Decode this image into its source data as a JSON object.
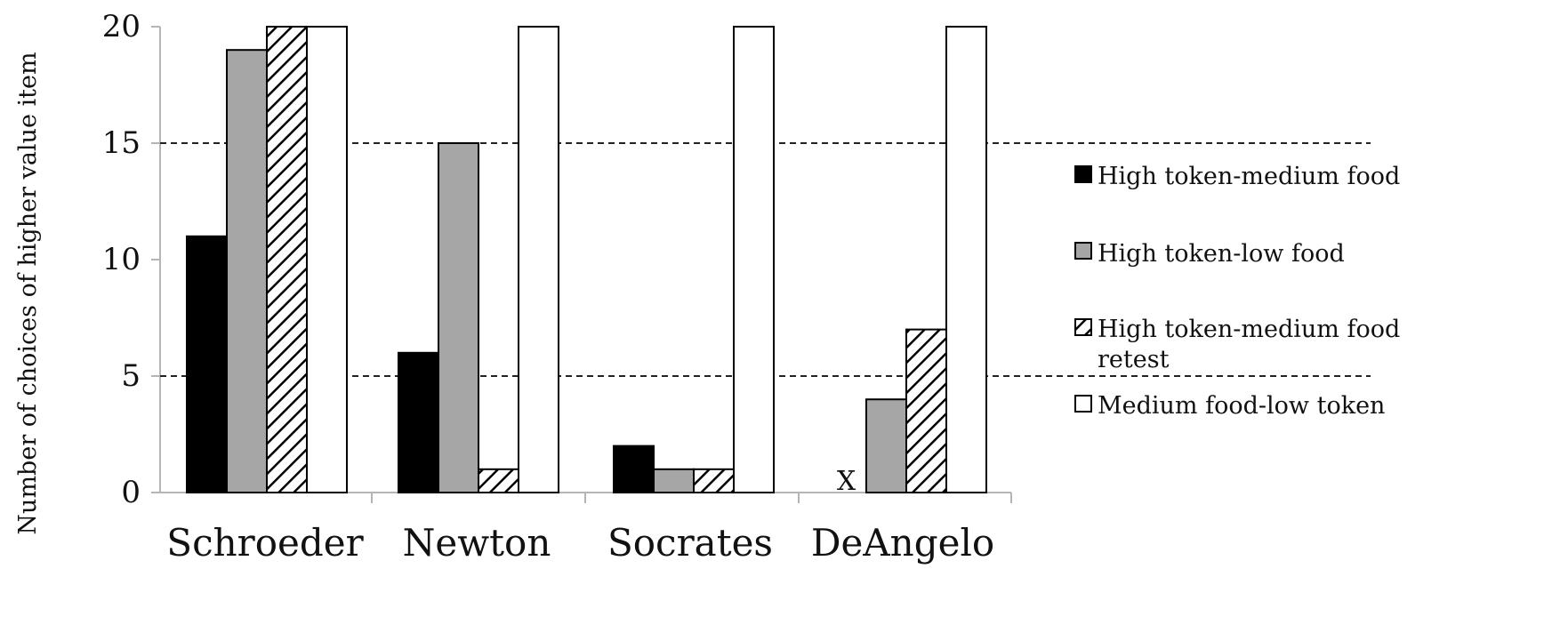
{
  "chart_data": {
    "type": "bar",
    "categories": [
      "Schroeder",
      "Newton",
      "Socrates",
      "DeAngelo"
    ],
    "series": [
      {
        "name": "High token-medium food",
        "values": [
          11,
          6,
          2,
          null
        ],
        "color": "#000000",
        "pattern": "solid"
      },
      {
        "name": "High token-low food",
        "values": [
          19,
          15,
          1,
          4
        ],
        "color": "#a6a6a6",
        "pattern": "solid"
      },
      {
        "name": "High token-medium food retest",
        "values": [
          20,
          1,
          1,
          7
        ],
        "color": "#ffffff",
        "pattern": "diagonal-hatch"
      },
      {
        "name": "Medium food-low token",
        "values": [
          20,
          20,
          20,
          20
        ],
        "color": "#ffffff",
        "pattern": "solid"
      }
    ],
    "missing_marker": "X",
    "reference_lines": [
      15,
      5
    ],
    "title": "",
    "xlabel": "",
    "ylabel": "Number of choices of higher value item",
    "ylim": [
      0,
      20
    ],
    "yticks": [
      "0",
      "5",
      "10",
      "15",
      "20"
    ],
    "grid": false,
    "legend_position": "right"
  }
}
